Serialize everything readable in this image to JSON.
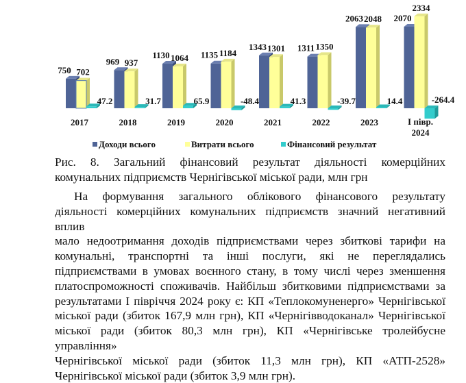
{
  "chart_data": {
    "type": "bar",
    "categories": [
      "2017",
      "2018",
      "2019",
      "2020",
      "2021",
      "2022",
      "2023",
      "І півр. 2024"
    ],
    "series": [
      {
        "name": "Доходи всього",
        "color": "#4f6496",
        "values": [
          750,
          969,
          1130,
          1135,
          1343,
          1311,
          2063,
          2070
        ]
      },
      {
        "name": "Витрати всього",
        "color": "#ffff99",
        "values": [
          702,
          937,
          1064,
          1184,
          1301,
          1350,
          2048,
          2334
        ]
      },
      {
        "name": "Фінансовий результат",
        "color": "#33cccc",
        "values": [
          47.2,
          31.7,
          65.9,
          -48.4,
          41.3,
          -39.7,
          14.4,
          -264.4
        ]
      }
    ],
    "value_labels": [
      [
        "750",
        "969",
        "1130",
        "1135",
        "1343",
        "1311",
        "2063",
        "2070"
      ],
      [
        "702",
        "937",
        "1064",
        "1184",
        "1301",
        "1350",
        "2048",
        "2334"
      ],
      [
        "47.2",
        "31.7",
        "65.9",
        "-48.4",
        "41.3",
        "-39.7",
        "14.4",
        "-264.4"
      ]
    ],
    "legend_position": "bottom",
    "grid": false,
    "title": "",
    "xlabel": "",
    "ylabel": ""
  },
  "caption": {
    "line1": "Рис. 8. Загальний фінансовий результат діяльності комерційних",
    "line2": "комунальних підприємств Чернігівської міської ради, млн грн"
  },
  "paragraph": [
    "На формування загального облікового фінансового результату",
    "діяльності комерційних комунальних підприємств значний негативний вплив",
    "мало недоотримання доходів підприємствами через збиткові тарифи на",
    "комунальні, транспортні та інші послуги, які не переглядались",
    "підприємствами в умовах воєнного стану, в тому числі через зменшення",
    "платоспроможності споживачів. Найбільш збитковими підприємствами за",
    "результатами І півріччя 2024 року є: КП «Теплокомуненерго» Чернігівської",
    "міської ради (збиток 167,9 млн грн), КП «Чернігівводоканал» Чернігівської",
    "міської ради (збиток 80,3 млн грн), КП «Чернігівське тролейбусне управління»",
    "Чернігівської міської ради (збиток 11,3 млн грн), КП «АТП-2528»",
    "Чернігівської міської ради (збиток 3,9 млн грн)."
  ]
}
